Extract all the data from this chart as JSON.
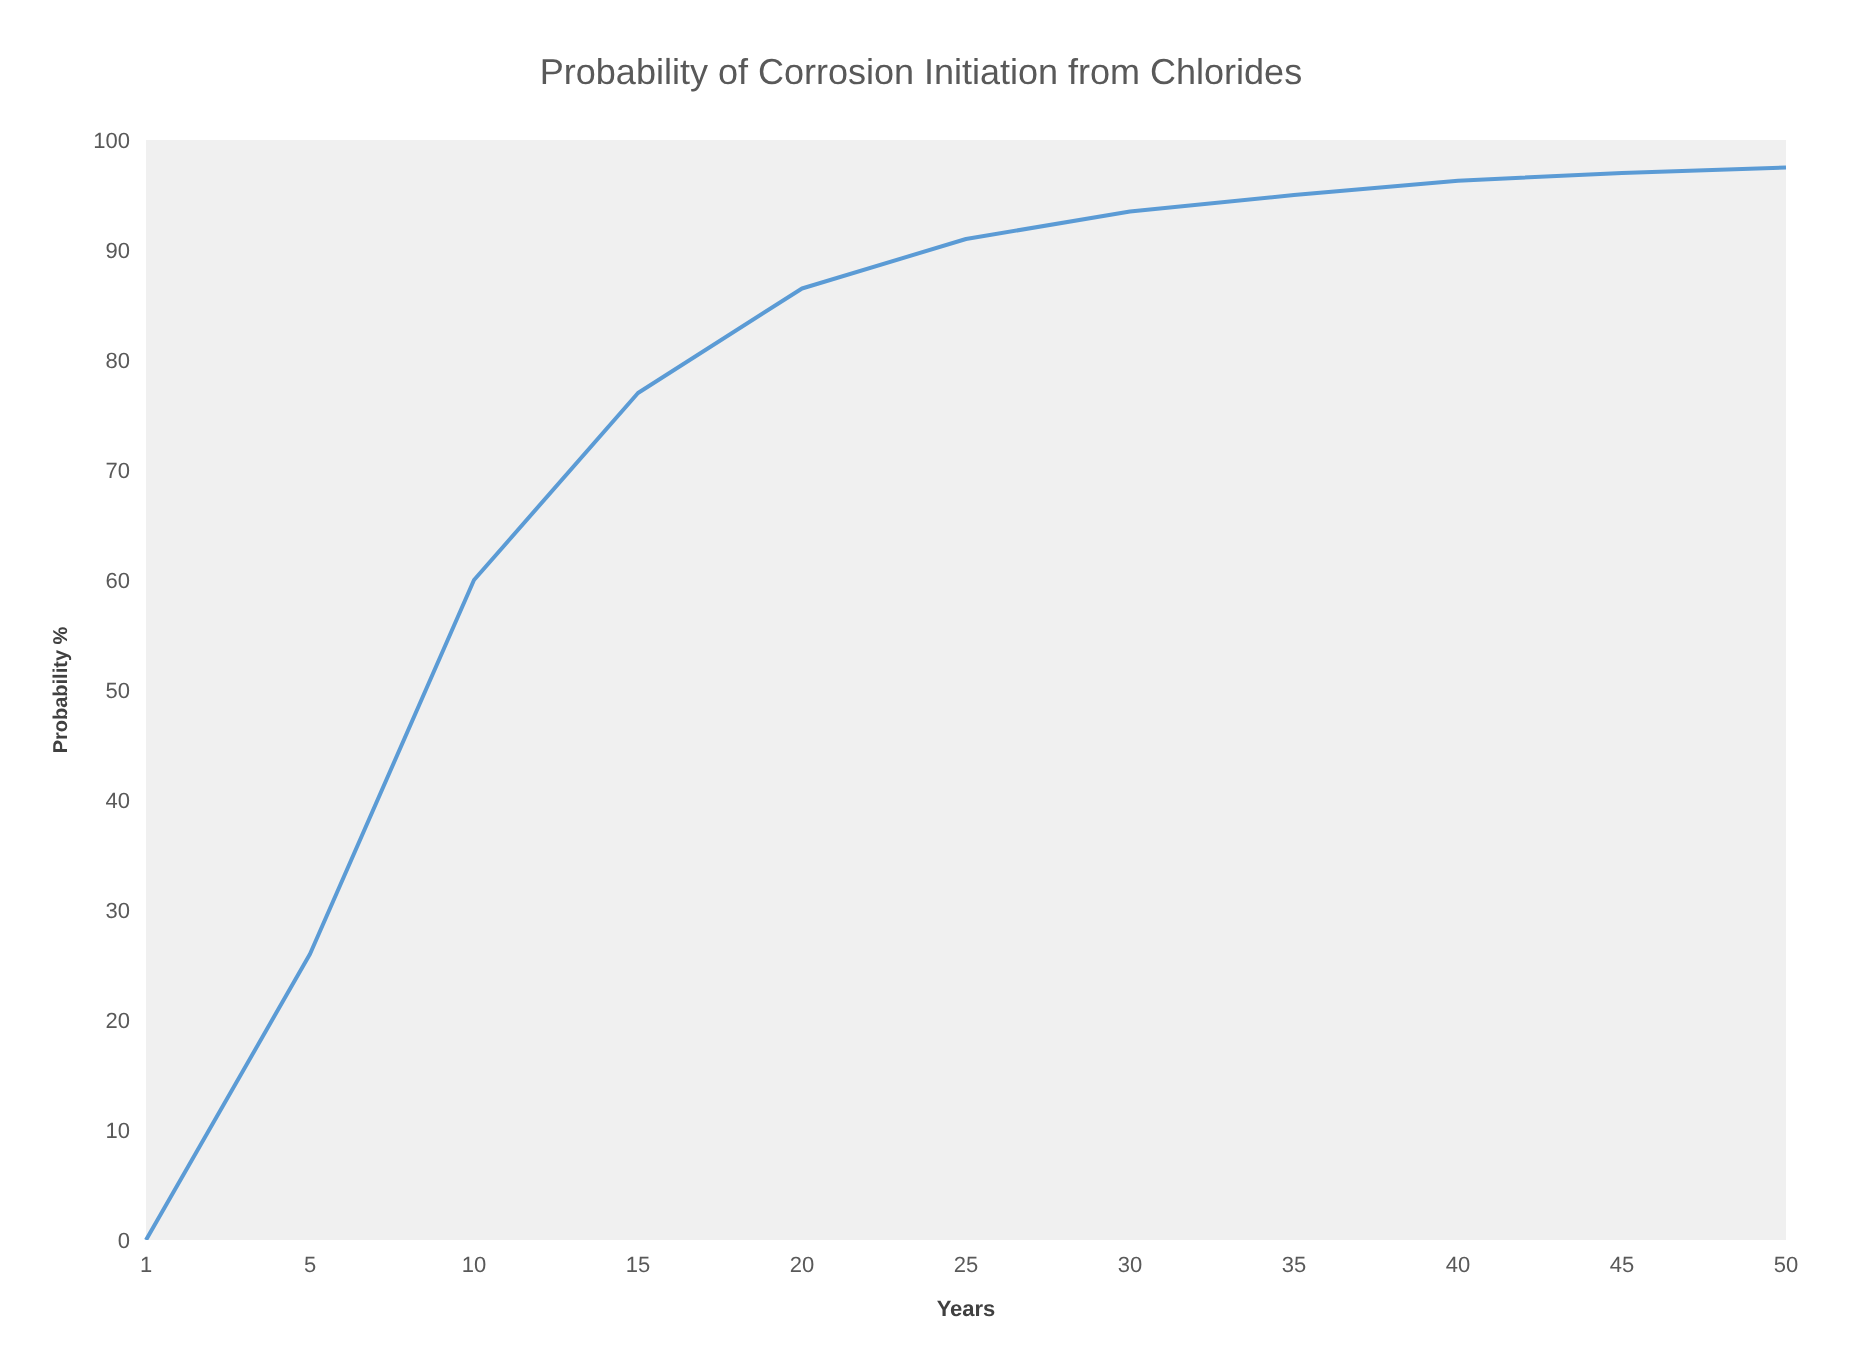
{
  "chart_data": {
    "type": "line",
    "title": "Probability of Corrosion Initiation from Chlorides",
    "xlabel": "Years",
    "ylabel": "Probability %",
    "categories": [
      "1",
      "5",
      "10",
      "15",
      "20",
      "25",
      "30",
      "35",
      "40",
      "45",
      "50"
    ],
    "series": [
      {
        "color": "#5b9bd5",
        "values": [
          0,
          26,
          60,
          77,
          86.5,
          91,
          93.5,
          95,
          96.3,
          97,
          97.5
        ]
      }
    ],
    "ylim": [
      0,
      100
    ],
    "yticks": [
      0,
      10,
      20,
      30,
      40,
      50,
      60,
      70,
      80,
      90,
      100
    ],
    "grid": false,
    "legend": false,
    "marker": "none",
    "line_style": "solid"
  }
}
